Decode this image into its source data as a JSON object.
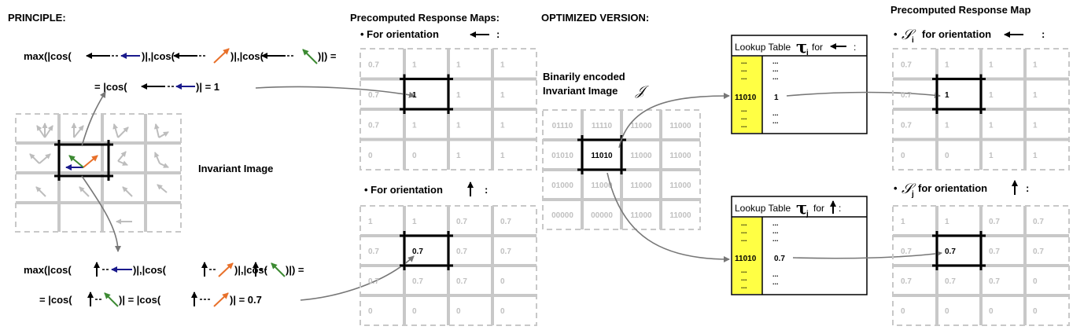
{
  "headings": {
    "principle": "PRINCIPLE:",
    "precomputed_maps": "Precomputed Response Maps:",
    "optimized": "OPTIMIZED VERSION:",
    "precomputed_map": "Precomputed Response Map"
  },
  "principle": {
    "eq1_parts": [
      "max(|cos(",
      ")|,|cos(",
      ")|,|cos(",
      ")|) ="
    ],
    "eq1_result_parts": [
      "= |cos(",
      ")| = 1"
    ],
    "eq2_parts": [
      "max(|cos(",
      ")|,|cos(",
      ")|,|cos(",
      ")|) ="
    ],
    "eq2_result_parts": [
      "= |cos(",
      ")| = |cos(",
      ")| = 0.7"
    ],
    "invariant_label": "Invariant Image"
  },
  "response_maps": {
    "orientation_label": "• For orientation",
    "colon": ":",
    "map_left": [
      [
        "0.7",
        "1",
        "1",
        "1"
      ],
      [
        "0.7",
        "1",
        "1",
        "1"
      ],
      [
        "0.7",
        "1",
        "1",
        "1"
      ],
      [
        "0",
        "0",
        "1",
        "1"
      ]
    ],
    "map_up": [
      [
        "1",
        "1",
        "0.7",
        "0.7"
      ],
      [
        "0.7",
        "0.7",
        "0.7",
        "0.7"
      ],
      [
        "0.7",
        "0.7",
        "0.7",
        "0"
      ],
      [
        "0",
        "0",
        "0",
        "0"
      ]
    ]
  },
  "optimized": {
    "binary_label_line1": "Binarily encoded",
    "binary_label_line2": "Invariant Image",
    "script_J": "𝒥",
    "binary_grid": [
      [
        "01110",
        "11110",
        "11000",
        "11000"
      ],
      [
        "01010",
        "11010",
        "11000",
        "11000"
      ],
      [
        "01000",
        "11000",
        "11000",
        "11000"
      ],
      [
        "00000",
        "00000",
        "11000",
        "11000"
      ]
    ],
    "lut_i": {
      "title": "Lookup Table",
      "symbol": "τ",
      "sub": "i",
      "for": "for",
      "key": "11010",
      "value": "1",
      "dots": "..."
    },
    "lut_j": {
      "title": "Lookup Table",
      "symbol": "τ",
      "sub": "j",
      "for": "for",
      "key": "11010",
      "value": "0.7",
      "dots": "..."
    },
    "s_i_label": {
      "symbol": "𝒮",
      "sub": "i",
      "text": "for orientation",
      "bullet": "•"
    },
    "s_j_label": {
      "symbol": "𝒮",
      "sub": "j",
      "text": "for orientation",
      "bullet": "•"
    }
  },
  "colors": {
    "blue": "#1a1a8c",
    "orange": "#e8702a",
    "green": "#3c8a32",
    "yellow": "#ffff44",
    "grid": "#c8c8c8"
  }
}
